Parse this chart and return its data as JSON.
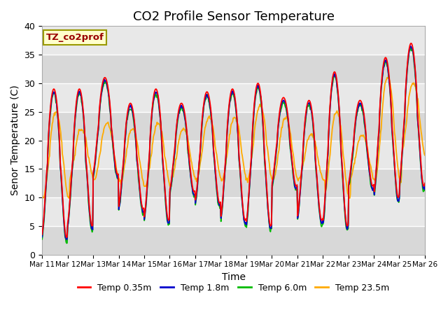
{
  "title": "CO2 Profile Sensor Temperature",
  "xlabel": "Time",
  "ylabel": "Senor Temperature (C)",
  "annotation_text": "TZ_co2prof",
  "ylim": [
    0,
    40
  ],
  "yticks": [
    0,
    5,
    10,
    15,
    20,
    25,
    30,
    35,
    40
  ],
  "x_labels": [
    "Mar 11",
    "Mar 12",
    "Mar 13",
    "Mar 14",
    "Mar 15",
    "Mar 16",
    "Mar 17",
    "Mar 18",
    "Mar 19",
    "Mar 20",
    "Mar 21",
    "Mar 22",
    "Mar 23",
    "Mar 24",
    "Mar 25",
    "Mar 26"
  ],
  "colors": {
    "red": "#ff0000",
    "blue": "#0000cc",
    "green": "#00bb00",
    "orange": "#ffaa00"
  },
  "legend_labels": [
    "Temp 0.35m",
    "Temp 1.8m",
    "Temp 6.0m",
    "Temp 23.5m"
  ],
  "bg_color": "#e8e8e8",
  "bg_band_color": "#d8d8d8",
  "title_fontsize": 13,
  "axis_fontsize": 10,
  "n_days": 15,
  "day_peaks_red": [
    29,
    29,
    31,
    26.5,
    29,
    26.5,
    28.5,
    29,
    30,
    27.5,
    27,
    32,
    27,
    34.5,
    37,
    37
  ],
  "day_mins_red": [
    3,
    5,
    14,
    8,
    6,
    11,
    9,
    6,
    5,
    12,
    6,
    5,
    12,
    10,
    12,
    13
  ],
  "day_peaks_orange": [
    25,
    22,
    23,
    22,
    23,
    22,
    24,
    24,
    26,
    24,
    21,
    25,
    21,
    31,
    30,
    30
  ],
  "day_mins_orange": [
    10,
    13,
    13,
    12,
    12,
    13,
    13,
    13,
    13,
    13,
    13,
    10,
    13,
    13,
    17,
    17
  ]
}
